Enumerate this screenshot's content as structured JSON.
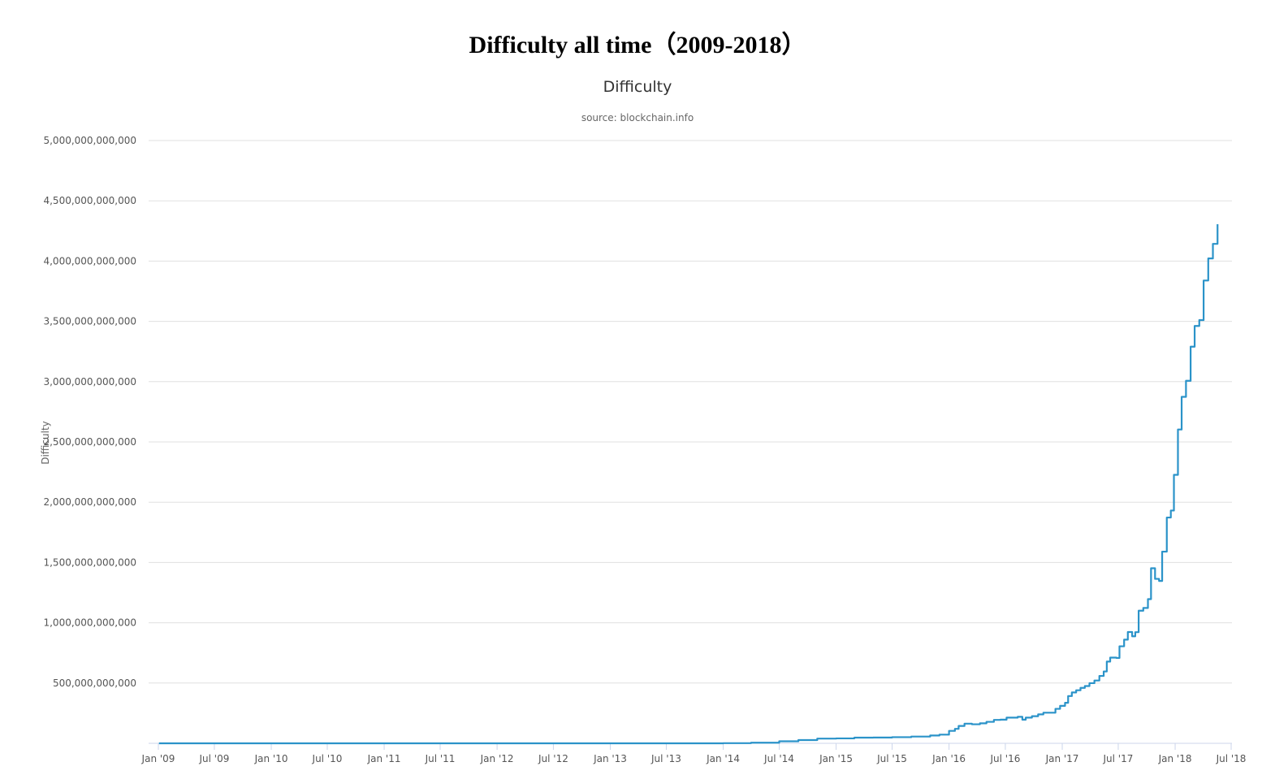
{
  "page": {
    "title": "Difficulty all time（2009-2018）"
  },
  "chart_data": {
    "type": "line",
    "title": "Difficulty",
    "subtitle": "source: blockchain.info",
    "xlabel": "",
    "ylabel": "Difficulty",
    "ylim": [
      0,
      5000000000000
    ],
    "y_ticks": [
      {
        "value": 500000000000,
        "label": "500,000,000,000"
      },
      {
        "value": 1000000000000,
        "label": "1,000,000,000,000"
      },
      {
        "value": 1500000000000,
        "label": "1,500,000,000,000"
      },
      {
        "value": 2000000000000,
        "label": "2,000,000,000,000"
      },
      {
        "value": 2500000000000,
        "label": "2,500,000,000,000"
      },
      {
        "value": 3000000000000,
        "label": "3,000,000,000,000"
      },
      {
        "value": 3500000000000,
        "label": "3,500,000,000,000"
      },
      {
        "value": 4000000000000,
        "label": "4,000,000,000,000"
      },
      {
        "value": 4500000000000,
        "label": "4,500,000,000,000"
      },
      {
        "value": 5000000000000,
        "label": "5,000,000,000,000"
      }
    ],
    "x_ticks": [
      {
        "date": "2009-01-01",
        "label": "Jan '09"
      },
      {
        "date": "2009-07-01",
        "label": "Jul '09"
      },
      {
        "date": "2010-01-01",
        "label": "Jan '10"
      },
      {
        "date": "2010-07-01",
        "label": "Jul '10"
      },
      {
        "date": "2011-01-01",
        "label": "Jan '11"
      },
      {
        "date": "2011-07-01",
        "label": "Jul '11"
      },
      {
        "date": "2012-01-01",
        "label": "Jan '12"
      },
      {
        "date": "2012-07-01",
        "label": "Jul '12"
      },
      {
        "date": "2013-01-01",
        "label": "Jan '13"
      },
      {
        "date": "2013-07-01",
        "label": "Jul '13"
      },
      {
        "date": "2014-01-01",
        "label": "Jan '14"
      },
      {
        "date": "2014-07-01",
        "label": "Jul '14"
      },
      {
        "date": "2015-01-01",
        "label": "Jan '15"
      },
      {
        "date": "2015-07-01",
        "label": "Jul '15"
      },
      {
        "date": "2016-01-01",
        "label": "Jan '16"
      },
      {
        "date": "2016-07-01",
        "label": "Jul '16"
      },
      {
        "date": "2017-01-01",
        "label": "Jan '17"
      },
      {
        "date": "2017-07-01",
        "label": "Jul '17"
      },
      {
        "date": "2018-01-01",
        "label": "Jan '18"
      },
      {
        "date": "2018-07-01",
        "label": "Jul '18"
      }
    ],
    "xlim": [
      "2009-01-01",
      "2018-07-01"
    ],
    "grid": true,
    "legend": "none",
    "series": [
      {
        "color": "#2b93c9",
        "step": true,
        "points": [
          [
            "2009-01-03",
            1
          ],
          [
            "2012-01-01",
            1300000
          ],
          [
            "2013-01-01",
            3400000
          ],
          [
            "2013-07-01",
            31000000
          ],
          [
            "2014-01-01",
            1400000000
          ],
          [
            "2014-04-01",
            5000000000
          ],
          [
            "2014-07-01",
            17000000000
          ],
          [
            "2014-09-01",
            27000000000
          ],
          [
            "2014-11-01",
            39000000000
          ],
          [
            "2015-01-01",
            41000000000
          ],
          [
            "2015-03-01",
            47000000000
          ],
          [
            "2015-05-01",
            48000000000
          ],
          [
            "2015-07-01",
            51000000000
          ],
          [
            "2015-09-01",
            56000000000
          ],
          [
            "2015-11-01",
            65000000000
          ],
          [
            "2015-12-01",
            72000000000
          ],
          [
            "2016-01-01",
            103000000000
          ],
          [
            "2016-01-20",
            120000000000
          ],
          [
            "2016-02-01",
            144000000000
          ],
          [
            "2016-02-20",
            163000000000
          ],
          [
            "2016-03-15",
            158000000000
          ],
          [
            "2016-04-10",
            166000000000
          ],
          [
            "2016-05-01",
            178000000000
          ],
          [
            "2016-05-25",
            194000000000
          ],
          [
            "2016-06-15",
            196000000000
          ],
          [
            "2016-07-05",
            213000000000
          ],
          [
            "2016-07-25",
            213000000000
          ],
          [
            "2016-08-10",
            220000000000
          ],
          [
            "2016-08-25",
            196000000000
          ],
          [
            "2016-09-05",
            213000000000
          ],
          [
            "2016-09-25",
            225000000000
          ],
          [
            "2016-10-15",
            240000000000
          ],
          [
            "2016-11-01",
            254000000000
          ],
          [
            "2016-11-20",
            254000000000
          ],
          [
            "2016-12-10",
            286000000000
          ],
          [
            "2016-12-25",
            311000000000
          ],
          [
            "2017-01-10",
            336000000000
          ],
          [
            "2017-01-20",
            392000000000
          ],
          [
            "2017-02-01",
            422000000000
          ],
          [
            "2017-02-15",
            440000000000
          ],
          [
            "2017-03-01",
            460000000000
          ],
          [
            "2017-03-15",
            475000000000
          ],
          [
            "2017-03-30",
            499000000000
          ],
          [
            "2017-04-15",
            521000000000
          ],
          [
            "2017-05-01",
            559000000000
          ],
          [
            "2017-05-15",
            596000000000
          ],
          [
            "2017-05-25",
            678000000000
          ],
          [
            "2017-06-05",
            711000000000
          ],
          [
            "2017-06-25",
            708000000000
          ],
          [
            "2017-07-05",
            805000000000
          ],
          [
            "2017-07-20",
            860000000000
          ],
          [
            "2017-08-01",
            923000000000
          ],
          [
            "2017-08-15",
            888000000000
          ],
          [
            "2017-08-25",
            922000000000
          ],
          [
            "2017-09-05",
            1100000000000
          ],
          [
            "2017-09-20",
            1123000000000
          ],
          [
            "2017-10-05",
            1196000000000
          ],
          [
            "2017-10-15",
            1452000000000
          ],
          [
            "2017-10-28",
            1364000000000
          ],
          [
            "2017-11-10",
            1347000000000
          ],
          [
            "2017-11-20",
            1590000000000
          ],
          [
            "2017-12-05",
            1873000000000
          ],
          [
            "2017-12-18",
            1931000000000
          ],
          [
            "2017-12-28",
            2227000000000
          ],
          [
            "2018-01-10",
            2603000000000
          ],
          [
            "2018-01-22",
            2874000000000
          ],
          [
            "2018-02-05",
            3007000000000
          ],
          [
            "2018-02-20",
            3290000000000
          ],
          [
            "2018-03-05",
            3462000000000
          ],
          [
            "2018-03-20",
            3511000000000
          ],
          [
            "2018-04-03",
            3839000000000
          ],
          [
            "2018-04-18",
            4022000000000
          ],
          [
            "2018-05-03",
            4143000000000
          ],
          [
            "2018-05-18",
            4306000000000
          ]
        ]
      }
    ]
  }
}
